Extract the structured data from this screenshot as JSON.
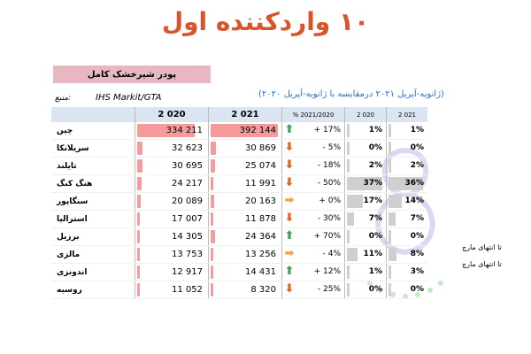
{
  "title": "۱۰ واردکننده اول",
  "product": "پودر شیرخشک کامل",
  "source": {
    "label": "منبع:",
    "value": "IHS Markit/GTA"
  },
  "period": "(ژانویه-آپریل ۲۰۲۱ درمقایسه با ژانویه-آپریل ۲۰۲۰)",
  "headers": {
    "country": "",
    "y2020": "2 020",
    "y2021": "2 021",
    "pct": "% 2021/2020",
    "s2020": "2 020",
    "s2021": "2 021"
  },
  "max_value": 392144,
  "colors": {
    "value_bar": "#f59b9b",
    "share_bar": "#cfcfcf",
    "up": "#3aa35a",
    "down": "#e3641a",
    "flat": "#f2a33a"
  },
  "rows": [
    {
      "country": "چین",
      "v2020": "334 211",
      "v2020_num": 334211,
      "v2021": "392 144",
      "v2021_num": 392144,
      "trend": "up",
      "pct": "+ 17%",
      "s2020": "1%",
      "s2020_num": 1,
      "s2021": "1%",
      "s2021_num": 1,
      "note": ""
    },
    {
      "country": "سریلانکا",
      "v2020": "32 623",
      "v2020_num": 32623,
      "v2021": "30 869",
      "v2021_num": 30869,
      "trend": "down",
      "pct": "- 5%",
      "s2020": "0%",
      "s2020_num": 0,
      "s2021": "0%",
      "s2021_num": 0,
      "note": ""
    },
    {
      "country": "تایلند",
      "v2020": "30 695",
      "v2020_num": 30695,
      "v2021": "25 074",
      "v2021_num": 25074,
      "trend": "down",
      "pct": "- 18%",
      "s2020": "2%",
      "s2020_num": 2,
      "s2021": "2%",
      "s2021_num": 2,
      "note": ""
    },
    {
      "country": "هنگ کنگ",
      "v2020": "24 217",
      "v2020_num": 24217,
      "v2021": "11 991",
      "v2021_num": 11991,
      "trend": "down",
      "pct": "- 50%",
      "s2020": "37%",
      "s2020_num": 37,
      "s2021": "36%",
      "s2021_num": 36,
      "note": ""
    },
    {
      "country": "سنگاپور",
      "v2020": "20 089",
      "v2020_num": 20089,
      "v2021": "20 163",
      "v2021_num": 20163,
      "trend": "flat",
      "pct": "+ 0%",
      "s2020": "17%",
      "s2020_num": 17,
      "s2021": "14%",
      "s2021_num": 14,
      "note": ""
    },
    {
      "country": "استرالیا",
      "v2020": "17 007",
      "v2020_num": 17007,
      "v2021": "11 878",
      "v2021_num": 11878,
      "trend": "down",
      "pct": "- 30%",
      "s2020": "7%",
      "s2020_num": 7,
      "s2021": "7%",
      "s2021_num": 7,
      "note": ""
    },
    {
      "country": "برزیل",
      "v2020": "14 305",
      "v2020_num": 14305,
      "v2021": "24 364",
      "v2021_num": 24364,
      "trend": "up",
      "pct": "+ 70%",
      "s2020": "0%",
      "s2020_num": 0,
      "s2021": "0%",
      "s2021_num": 0,
      "note": ""
    },
    {
      "country": "مالزی",
      "v2020": "13 753",
      "v2020_num": 13753,
      "v2021": "13 256",
      "v2021_num": 13256,
      "trend": "flat",
      "pct": "- 4%",
      "s2020": "11%",
      "s2020_num": 11,
      "s2021": "8%",
      "s2021_num": 8,
      "note": "تا انتهای مارچ"
    },
    {
      "country": "اندونزی",
      "v2020": "12 917",
      "v2020_num": 12917,
      "v2021": "14 431",
      "v2021_num": 14431,
      "trend": "up",
      "pct": "+ 12%",
      "s2020": "1%",
      "s2020_num": 1,
      "s2021": "3%",
      "s2021_num": 3,
      "note": "تا انتهای مارچ"
    },
    {
      "country": "روسیه",
      "v2020": "11 052",
      "v2020_num": 11052,
      "v2021": "8 320",
      "v2021_num": 8320,
      "trend": "down",
      "pct": "- 25%",
      "s2020": "0%",
      "s2020_num": 0,
      "s2021": "0%",
      "s2021_num": 0,
      "note": ""
    }
  ]
}
